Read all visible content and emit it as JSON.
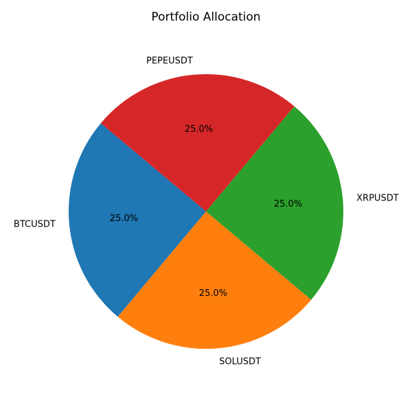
{
  "chart_data": {
    "type": "pie",
    "title": "Portfolio Allocation",
    "start_angle_deg": 140,
    "direction": "counterclockwise",
    "slices": [
      {
        "label": "BTCUSDT",
        "value": 25.0,
        "pct_label": "25.0%",
        "color": "#1f77b4"
      },
      {
        "label": "SOLUSDT",
        "value": 25.0,
        "pct_label": "25.0%",
        "color": "#ff7f0e"
      },
      {
        "label": "XRPUSDT",
        "value": 25.0,
        "pct_label": "25.0%",
        "color": "#2ca02c"
      },
      {
        "label": "PEPEUSDT",
        "value": 25.0,
        "pct_label": "25.0%",
        "color": "#d62728"
      }
    ]
  }
}
